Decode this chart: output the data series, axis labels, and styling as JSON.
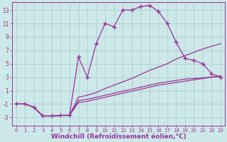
{
  "background_color": "#cce8e8",
  "grid_color": "#b0d0d0",
  "line_color": "#993399",
  "line_width": 0.9,
  "marker": "+",
  "marker_size": 4,
  "marker_ew": 1.0,
  "xlabel": "Windchill (Refroidissement éolien,°C)",
  "xlabel_fontsize": 6.5,
  "xtick_fontsize": 5.0,
  "ytick_fontsize": 5.5,
  "xlim": [
    -0.5,
    23.5
  ],
  "ylim": [
    -4.2,
    14.2
  ],
  "yticks": [
    -3,
    -1,
    1,
    3,
    5,
    7,
    9,
    11,
    13
  ],
  "xticks": [
    0,
    1,
    2,
    3,
    4,
    5,
    6,
    7,
    8,
    9,
    10,
    11,
    12,
    13,
    14,
    15,
    16,
    17,
    18,
    19,
    20,
    21,
    22,
    23
  ],
  "lines": [
    {
      "x": [
        0,
        1,
        2,
        3,
        4,
        5,
        6,
        7,
        8,
        9,
        10,
        11,
        12,
        13,
        14,
        15,
        16,
        17,
        18,
        19,
        20,
        21,
        22,
        23
      ],
      "y": [
        -1,
        -1,
        -1.5,
        -2.8,
        -2.8,
        -2.7,
        -2.7,
        6,
        3,
        8,
        11,
        10.5,
        13,
        13,
        13.5,
        13.7,
        12.8,
        11,
        8.2,
        5.8,
        5.5,
        5,
        3.5,
        3
      ],
      "marker": true
    },
    {
      "x": [
        0,
        1,
        2,
        3,
        4,
        5,
        6,
        7,
        8,
        9,
        10,
        11,
        12,
        13,
        14,
        15,
        16,
        17,
        18,
        19,
        20,
        21,
        22,
        23
      ],
      "y": [
        -1,
        -1,
        -1.5,
        -2.8,
        -2.8,
        -2.7,
        -2.7,
        0.0,
        0.3,
        0.7,
        1.3,
        1.8,
        2.3,
        2.8,
        3.4,
        4.0,
        4.5,
        5.0,
        5.7,
        6.2,
        6.7,
        7.2,
        7.6,
        8.0
      ],
      "marker": false
    },
    {
      "x": [
        0,
        1,
        2,
        3,
        4,
        5,
        6,
        7,
        8,
        9,
        10,
        11,
        12,
        13,
        14,
        15,
        16,
        17,
        18,
        19,
        20,
        21,
        22,
        23
      ],
      "y": [
        -1,
        -1,
        -1.5,
        -2.8,
        -2.8,
        -2.7,
        -2.7,
        -0.5,
        -0.3,
        0.0,
        0.3,
        0.6,
        0.9,
        1.2,
        1.5,
        1.8,
        2.1,
        2.3,
        2.5,
        2.7,
        2.8,
        2.9,
        3.0,
        3.1
      ],
      "marker": false
    },
    {
      "x": [
        0,
        1,
        2,
        3,
        4,
        5,
        6,
        7,
        8,
        9,
        10,
        11,
        12,
        13,
        14,
        15,
        16,
        17,
        18,
        19,
        20,
        21,
        22,
        23
      ],
      "y": [
        -1,
        -1,
        -1.5,
        -2.8,
        -2.8,
        -2.7,
        -2.7,
        -0.8,
        -0.6,
        -0.3,
        0.0,
        0.3,
        0.6,
        0.9,
        1.2,
        1.5,
        1.8,
        2.0,
        2.2,
        2.4,
        2.6,
        2.8,
        3.0,
        3.2
      ],
      "marker": false
    }
  ]
}
